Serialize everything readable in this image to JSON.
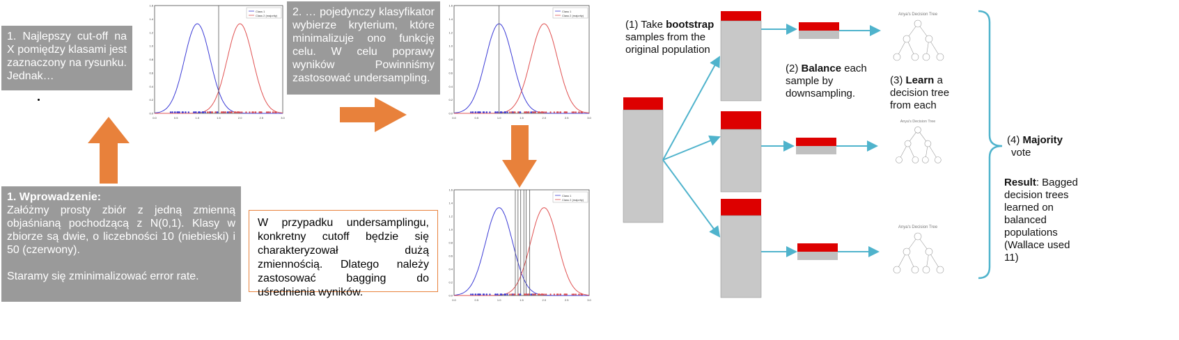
{
  "left": {
    "box1": "1. Najlepszy cut-off na X pomiędzy klasami jest zaznaczony na rysunku. Jednak…",
    "box2": "2. … pojedynczy klasyfikator wybierze kryterium, które minimalizuje ono funkcję celu. W celu poprawy wyników Powinniśmy zastosować undersampling.",
    "intro_title": "1. Wprowadzenie:",
    "intro_body": "Załóżmy prosty zbiór z jedną zmienną objaśnianą pochodzącą z N(0,1). Klasy w zbiorze są dwie, o liczebności 10 (niebieski) i 50 (czerwony).",
    "intro_goal": "Staramy się zminimalizować error rate.",
    "orange_box": "W przypadku undersamplingu, konkretny cutoff będzie się charakteryzował dużą zmiennością. Dlatego należy zastosować bagging do uśrednienia wyników.",
    "legend_class1": "Class 1",
    "legend_class2": "Class 2 (majority)"
  },
  "right": {
    "step1_pre": "(1) Take ",
    "step1_bold": "bootstrap",
    "step1_post": "samples from the original population",
    "step2_pre": "(2) ",
    "step2_bold": "Balance",
    "step2_post": " each sample by downsampling.",
    "step3_pre": "(3) ",
    "step3_bold": "Learn",
    "step3_post": " a decision tree from each",
    "step4_pre": "(4) ",
    "step4_bold": "Majority",
    "step4_post": "vote",
    "result_bold": "Result",
    "result_post": ": Bagged decision trees learned on balanced populations (Wallace used 11)",
    "tree_title": "Anya's Decision Tree"
  },
  "colors": {
    "gray_box": "#9a9a9a",
    "orange": "#e8813b",
    "blue": "#3b3bd6",
    "red": "#e05050",
    "pop_red": "#dd0000",
    "pop_gray": "#c8c8c8",
    "arrow_teal": "#4fb3cc"
  }
}
